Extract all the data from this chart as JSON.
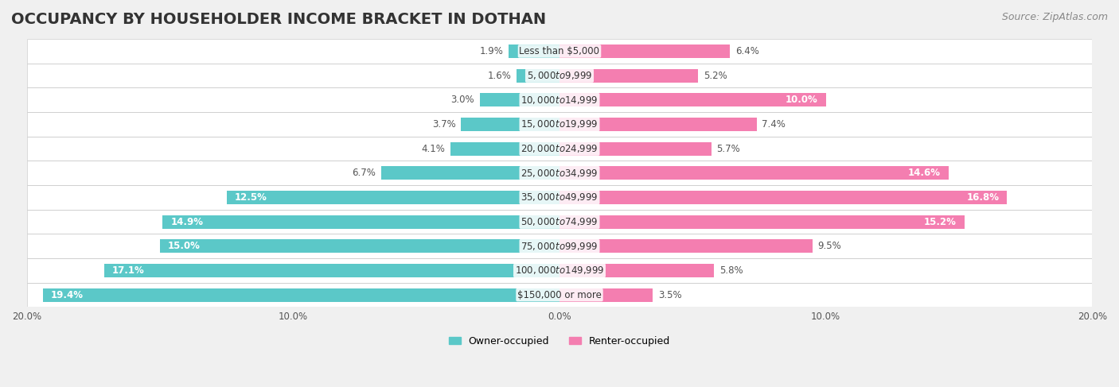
{
  "title": "OCCUPANCY BY HOUSEHOLDER INCOME BRACKET IN DOTHAN",
  "source": "Source: ZipAtlas.com",
  "categories": [
    "Less than $5,000",
    "$5,000 to $9,999",
    "$10,000 to $14,999",
    "$15,000 to $19,999",
    "$20,000 to $24,999",
    "$25,000 to $34,999",
    "$35,000 to $49,999",
    "$50,000 to $74,999",
    "$75,000 to $99,999",
    "$100,000 to $149,999",
    "$150,000 or more"
  ],
  "owner_values": [
    1.9,
    1.6,
    3.0,
    3.7,
    4.1,
    6.7,
    12.5,
    14.9,
    15.0,
    17.1,
    19.4
  ],
  "renter_values": [
    6.4,
    5.2,
    10.0,
    7.4,
    5.7,
    14.6,
    16.8,
    15.2,
    9.5,
    5.8,
    3.5
  ],
  "owner_color": "#5BC8C8",
  "renter_color": "#F47EB0",
  "background_color": "#f0f0f0",
  "bar_bg_color": "#ffffff",
  "title_fontsize": 14,
  "source_fontsize": 9,
  "label_fontsize": 8.5,
  "bar_height": 0.55,
  "xlim": 20.0,
  "legend_labels": [
    "Owner-occupied",
    "Renter-occupied"
  ]
}
